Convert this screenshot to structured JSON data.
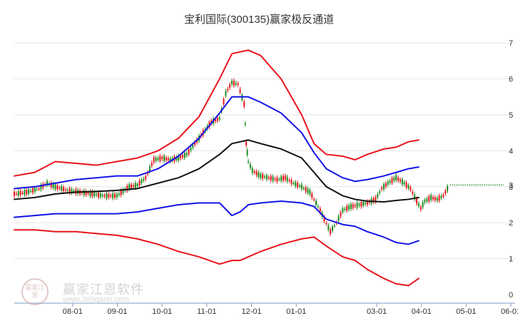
{
  "chart_data": {
    "type": "line",
    "title": "宝利国际(300135)赢家极反通道",
    "xlabel": "",
    "ylabel": "",
    "x_ticks": [
      "08-01",
      "09-01",
      "10-01",
      "11-01",
      "12-01",
      "01-01",
      "03-01",
      "04-01",
      "05-01",
      "06-01"
    ],
    "y_ticks": [
      0,
      1,
      2,
      3,
      4,
      5,
      6,
      7
    ],
    "ylim": [
      0,
      7.5
    ],
    "xlim_month_index": [
      0,
      11.2
    ],
    "last_price_label": "3",
    "last_price": 3.05,
    "grid": true,
    "series": [
      {
        "name": "outer-upper-band",
        "color": "#e8141c",
        "points": [
          [
            0,
            3.3
          ],
          [
            0.5,
            3.4
          ],
          [
            1,
            3.7
          ],
          [
            1.5,
            3.65
          ],
          [
            2,
            3.6
          ],
          [
            2.5,
            3.7
          ],
          [
            3,
            3.8
          ],
          [
            3.5,
            4.0
          ],
          [
            4,
            4.35
          ],
          [
            4.5,
            4.95
          ],
          [
            5,
            6.0
          ],
          [
            5.3,
            6.7
          ],
          [
            5.7,
            6.8
          ],
          [
            6,
            6.65
          ],
          [
            6.5,
            6.0
          ],
          [
            7,
            5.0
          ],
          [
            7.3,
            4.2
          ],
          [
            7.6,
            3.9
          ],
          [
            8,
            3.85
          ],
          [
            8.3,
            3.75
          ],
          [
            8.6,
            3.9
          ],
          [
            9,
            4.05
          ],
          [
            9.3,
            4.1
          ],
          [
            9.6,
            4.25
          ],
          [
            9.85,
            4.3
          ]
        ]
      },
      {
        "name": "inner-upper-band",
        "color": "#1414e8",
        "points": [
          [
            0,
            2.95
          ],
          [
            0.5,
            3.0
          ],
          [
            1,
            3.1
          ],
          [
            1.5,
            3.2
          ],
          [
            2,
            3.25
          ],
          [
            2.5,
            3.3
          ],
          [
            3,
            3.3
          ],
          [
            3.5,
            3.5
          ],
          [
            4,
            3.85
          ],
          [
            4.5,
            4.35
          ],
          [
            5,
            5.05
          ],
          [
            5.3,
            5.5
          ],
          [
            5.7,
            5.5
          ],
          [
            6,
            5.35
          ],
          [
            6.5,
            5.05
          ],
          [
            7,
            4.5
          ],
          [
            7.3,
            3.95
          ],
          [
            7.6,
            3.5
          ],
          [
            8,
            3.25
          ],
          [
            8.3,
            3.15
          ],
          [
            8.6,
            3.2
          ],
          [
            9,
            3.3
          ],
          [
            9.3,
            3.4
          ],
          [
            9.6,
            3.5
          ],
          [
            9.85,
            3.55
          ]
        ]
      },
      {
        "name": "middle-line",
        "color": "#111111",
        "points": [
          [
            0,
            2.65
          ],
          [
            0.5,
            2.7
          ],
          [
            1,
            2.8
          ],
          [
            1.5,
            2.85
          ],
          [
            2,
            2.87
          ],
          [
            2.5,
            2.9
          ],
          [
            3,
            2.95
          ],
          [
            3.5,
            3.1
          ],
          [
            4,
            3.25
          ],
          [
            4.5,
            3.5
          ],
          [
            5,
            3.9
          ],
          [
            5.3,
            4.2
          ],
          [
            5.7,
            4.3
          ],
          [
            6,
            4.2
          ],
          [
            6.5,
            4.05
          ],
          [
            7,
            3.8
          ],
          [
            7.3,
            3.4
          ],
          [
            7.6,
            3.0
          ],
          [
            8,
            2.75
          ],
          [
            8.3,
            2.65
          ],
          [
            8.6,
            2.6
          ],
          [
            9,
            2.58
          ],
          [
            9.3,
            2.62
          ],
          [
            9.6,
            2.65
          ],
          [
            9.85,
            2.7
          ]
        ]
      },
      {
        "name": "inner-lower-band",
        "color": "#1414e8",
        "points": [
          [
            0,
            2.15
          ],
          [
            0.5,
            2.2
          ],
          [
            1,
            2.25
          ],
          [
            1.5,
            2.25
          ],
          [
            2,
            2.25
          ],
          [
            2.5,
            2.25
          ],
          [
            3,
            2.3
          ],
          [
            3.5,
            2.4
          ],
          [
            4,
            2.5
          ],
          [
            4.5,
            2.55
          ],
          [
            5,
            2.55
          ],
          [
            5.3,
            2.2
          ],
          [
            5.5,
            2.3
          ],
          [
            5.7,
            2.5
          ],
          [
            6,
            2.55
          ],
          [
            6.5,
            2.6
          ],
          [
            7,
            2.55
          ],
          [
            7.3,
            2.45
          ],
          [
            7.6,
            2.1
          ],
          [
            8,
            1.95
          ],
          [
            8.3,
            1.9
          ],
          [
            8.6,
            1.75
          ],
          [
            9,
            1.6
          ],
          [
            9.3,
            1.45
          ],
          [
            9.6,
            1.4
          ],
          [
            9.85,
            1.5
          ]
        ]
      },
      {
        "name": "outer-lower-band",
        "color": "#e8141c",
        "points": [
          [
            0,
            1.8
          ],
          [
            0.5,
            1.8
          ],
          [
            1,
            1.75
          ],
          [
            1.5,
            1.75
          ],
          [
            2,
            1.7
          ],
          [
            2.5,
            1.65
          ],
          [
            3,
            1.55
          ],
          [
            3.5,
            1.4
          ],
          [
            4,
            1.2
          ],
          [
            4.5,
            1.05
          ],
          [
            5,
            0.85
          ],
          [
            5.3,
            0.95
          ],
          [
            5.5,
            0.95
          ],
          [
            5.7,
            1.05
          ],
          [
            6,
            1.2
          ],
          [
            6.5,
            1.4
          ],
          [
            7,
            1.55
          ],
          [
            7.3,
            1.6
          ],
          [
            7.6,
            1.35
          ],
          [
            8,
            1.05
          ],
          [
            8.3,
            0.95
          ],
          [
            8.6,
            0.7
          ],
          [
            9,
            0.45
          ],
          [
            9.3,
            0.3
          ],
          [
            9.6,
            0.25
          ],
          [
            9.85,
            0.45
          ]
        ]
      }
    ],
    "candles": {
      "up_color": "#e8141c",
      "down_color": "#1c8a1c",
      "closes": [
        [
          0,
          2.8
        ],
        [
          0.3,
          2.85
        ],
        [
          0.6,
          2.95
        ],
        [
          0.8,
          3.1
        ],
        [
          1,
          3.0
        ],
        [
          1.3,
          2.9
        ],
        [
          1.6,
          2.85
        ],
        [
          1.9,
          2.8
        ],
        [
          2.2,
          2.75
        ],
        [
          2.5,
          2.75
        ],
        [
          2.8,
          3.0
        ],
        [
          3.0,
          3.05
        ],
        [
          3.2,
          3.25
        ],
        [
          3.4,
          3.75
        ],
        [
          3.6,
          3.8
        ],
        [
          3.8,
          3.75
        ],
        [
          4.0,
          3.8
        ],
        [
          4.2,
          3.9
        ],
        [
          4.4,
          4.2
        ],
        [
          4.6,
          4.5
        ],
        [
          4.8,
          4.8
        ],
        [
          5.0,
          4.9
        ],
        [
          5.15,
          5.6
        ],
        [
          5.3,
          5.9
        ],
        [
          5.45,
          5.85
        ],
        [
          5.6,
          5.3
        ],
        [
          5.65,
          4.2
        ],
        [
          5.7,
          3.7
        ],
        [
          5.8,
          3.45
        ],
        [
          6.0,
          3.3
        ],
        [
          6.2,
          3.25
        ],
        [
          6.4,
          3.2
        ],
        [
          6.6,
          3.25
        ],
        [
          6.8,
          3.1
        ],
        [
          7.0,
          3.0
        ],
        [
          7.2,
          2.85
        ],
        [
          7.4,
          2.45
        ],
        [
          7.55,
          2.1
        ],
        [
          7.7,
          1.75
        ],
        [
          7.85,
          2.0
        ],
        [
          8.0,
          2.35
        ],
        [
          8.2,
          2.45
        ],
        [
          8.4,
          2.5
        ],
        [
          8.6,
          2.55
        ],
        [
          8.8,
          2.65
        ],
        [
          8.95,
          2.95
        ],
        [
          9.1,
          3.1
        ],
        [
          9.3,
          3.25
        ],
        [
          9.5,
          3.1
        ],
        [
          9.65,
          2.95
        ],
        [
          9.8,
          2.6
        ],
        [
          9.9,
          2.4
        ],
        [
          10.0,
          2.6
        ],
        [
          10.15,
          2.7
        ],
        [
          10.3,
          2.65
        ],
        [
          10.45,
          2.75
        ],
        [
          10.6,
          3.05
        ]
      ]
    }
  },
  "watermark": {
    "logo_text": "赢家江恩",
    "name": "赢家江恩软件",
    "url": "www.369gann.com"
  }
}
